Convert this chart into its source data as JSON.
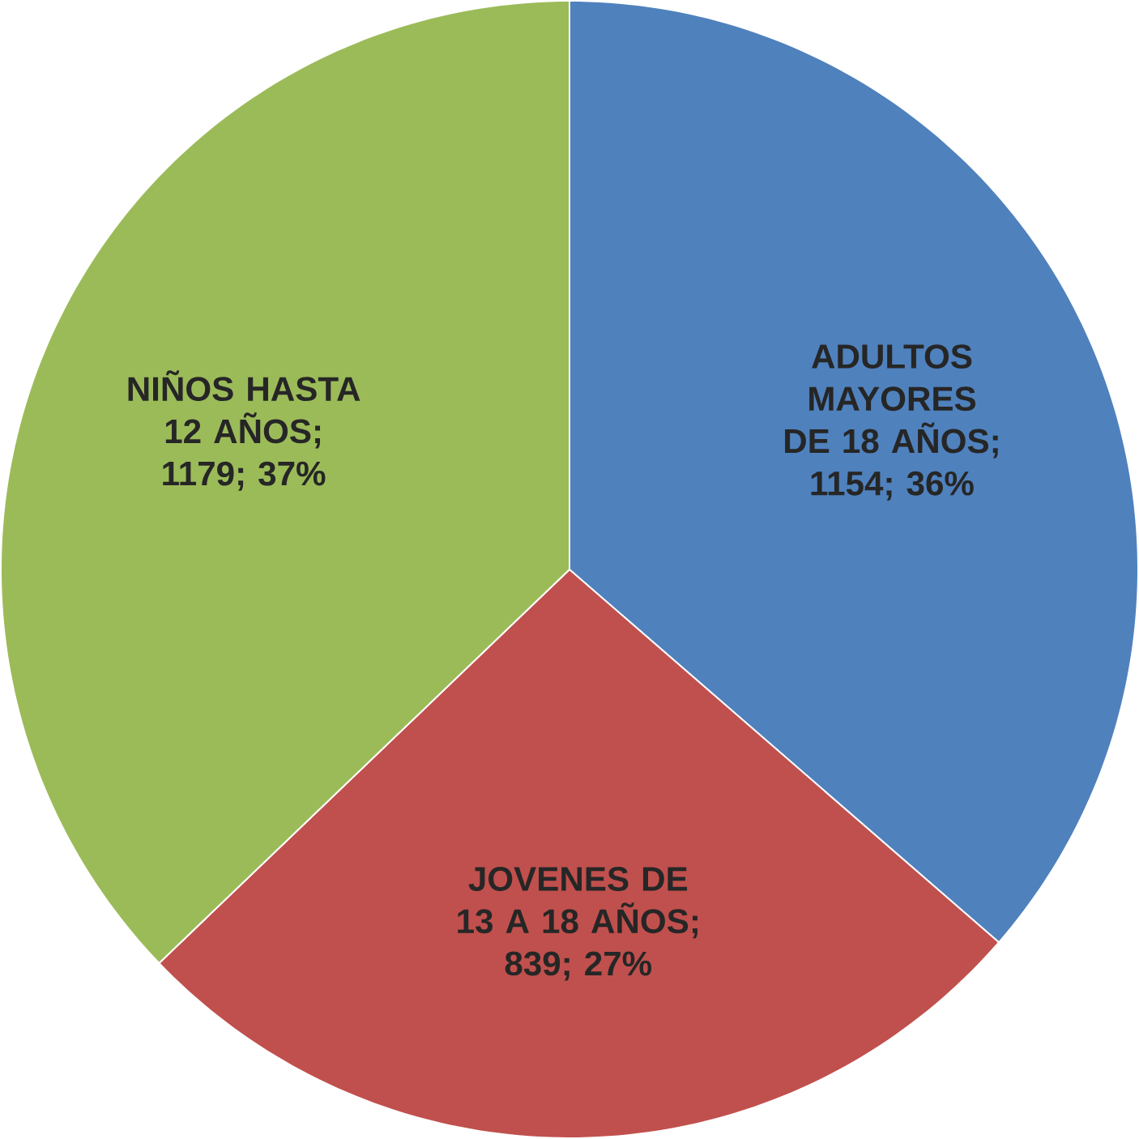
{
  "chart_data": {
    "type": "pie",
    "categories": [
      "ADULTOS MAYORES DE 18 AÑOS",
      "JOVENES DE 13 A 18 AÑOS",
      "NIÑOS HASTA 12 AÑOS"
    ],
    "values": [
      1154,
      839,
      1179
    ],
    "value_labels": [
      "; 1154; 36%",
      "; 839; 27%",
      "; 1179; 37%"
    ],
    "colors": [
      "#4f81bd",
      "#c0504d",
      "#9bbb59"
    ]
  }
}
